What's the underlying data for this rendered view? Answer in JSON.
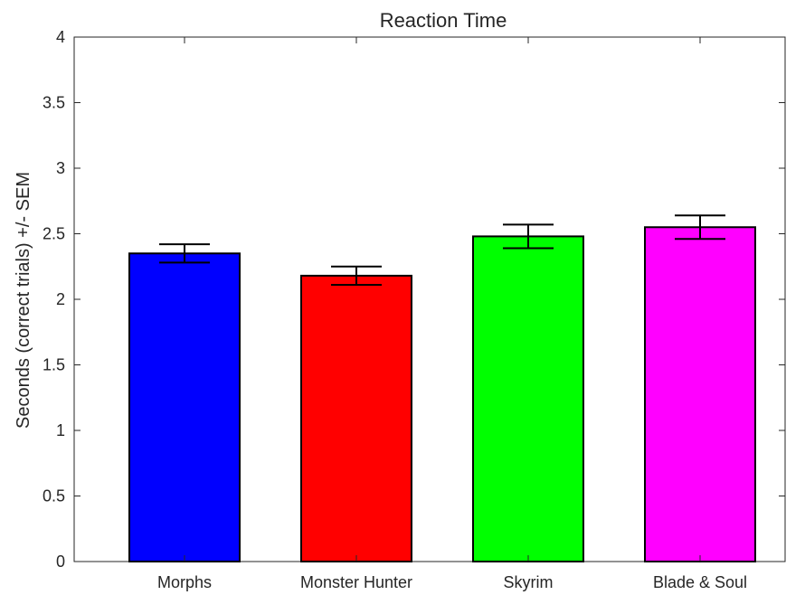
{
  "chart_data": {
    "type": "bar",
    "title": "Reaction Time",
    "xlabel": "",
    "ylabel": "Seconds (correct trials) +/- SEM",
    "categories": [
      "Morphs",
      "Monster Hunter",
      "Skyrim",
      "Blade & Soul"
    ],
    "values": [
      2.35,
      2.18,
      2.48,
      2.55
    ],
    "errors": [
      0.07,
      0.07,
      0.09,
      0.09
    ],
    "colors": [
      "#0000ff",
      "#ff0000",
      "#00ff00",
      "#ff00ff"
    ],
    "ylim": [
      0,
      4
    ],
    "yticks": [
      0,
      0.5,
      1,
      1.5,
      2,
      2.5,
      3,
      3.5,
      4
    ],
    "ytick_labels": [
      "0",
      "0.5",
      "1",
      "1.5",
      "2",
      "2.5",
      "3",
      "3.5",
      "4"
    ],
    "grid": false,
    "legend": "none"
  }
}
